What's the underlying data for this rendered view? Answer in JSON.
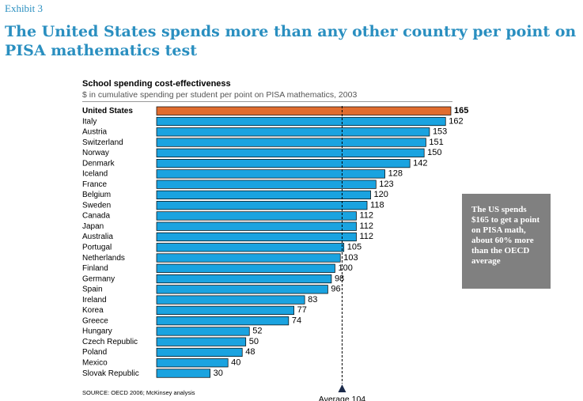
{
  "exhibit_label": "Exhibit 3",
  "headline": "The United States spends more than any other country per point on PISA mathematics test",
  "callout_text": "The US spends $165 to get a point on PISA math, about 60% more than the OECD average",
  "source": "SOURCE: OECD 2006; McKinsey analysis",
  "colors": {
    "title_blue": "#2a8fc0",
    "bar_blue": "#1aa3e0",
    "highlight_orange": "#e06c2e",
    "callout_gray": "#808080"
  },
  "chart_data": {
    "type": "bar",
    "orientation": "horizontal",
    "title": "School spending cost-effectiveness",
    "subtitle": "$ in cumulative spending per student per point on PISA mathematics, 2003",
    "categories": [
      "United States",
      "Italy",
      "Austria",
      "Switzerland",
      "Norway",
      "Denmark",
      "Iceland",
      "France",
      "Belgium",
      "Sweden",
      "Canada",
      "Japan",
      "Australia",
      "Portugal",
      "Netherlands",
      "Finland",
      "Germany",
      "Spain",
      "Ireland",
      "Korea",
      "Greece",
      "Hungary",
      "Czech Republic",
      "Poland",
      "Mexico",
      "Slovak Republic"
    ],
    "values": [
      165,
      162,
      153,
      151,
      150,
      142,
      128,
      123,
      120,
      118,
      112,
      112,
      112,
      105,
      103,
      100,
      98,
      96,
      83,
      77,
      74,
      52,
      50,
      48,
      40,
      30
    ],
    "highlight": "United States",
    "reference_line": {
      "value": 104,
      "label": "Average 104"
    },
    "xlim": [
      0,
      165
    ]
  }
}
